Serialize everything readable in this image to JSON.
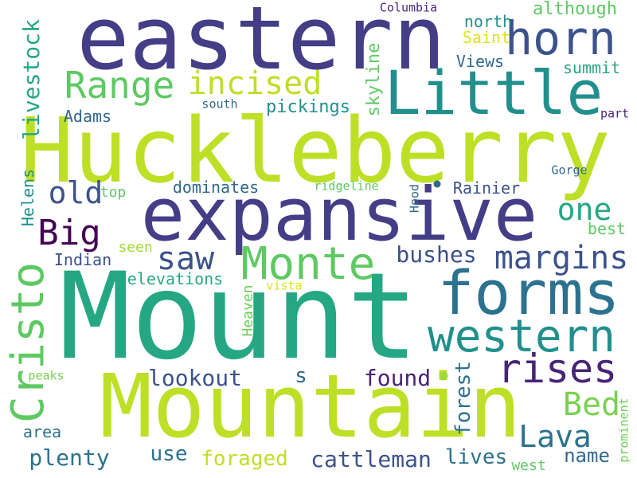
{
  "words": [
    {
      "text": "Mount",
      "color": "#26a784"
    },
    {
      "text": "Huckleberry",
      "color": "#bddf26"
    },
    {
      "text": "Mountain",
      "color": "#bddf26"
    },
    {
      "text": "eastern",
      "color": "#433e85"
    },
    {
      "text": "expansive",
      "color": "#433e85"
    },
    {
      "text": "Little",
      "color": "#21908d"
    },
    {
      "text": "horn",
      "color": "#3b528b"
    },
    {
      "text": "forms",
      "color": "#2c728e"
    },
    {
      "text": "western",
      "color": "#21908d"
    },
    {
      "text": "Monte",
      "color": "#5ec962"
    },
    {
      "text": "Cristo",
      "color": "#5ec962"
    },
    {
      "text": "rises",
      "color": "#482475"
    },
    {
      "text": "margins",
      "color": "#3b528b"
    },
    {
      "text": "Range",
      "color": "#5ec962"
    },
    {
      "text": "incised",
      "color": "#bddf26"
    },
    {
      "text": "Big",
      "color": "#440154"
    },
    {
      "text": "saw",
      "color": "#3b528b"
    },
    {
      "text": "old",
      "color": "#3b528b"
    },
    {
      "text": "one",
      "color": "#26a784"
    },
    {
      "text": "Bed",
      "color": "#7ad151"
    },
    {
      "text": "Lava",
      "color": "#2c728e"
    },
    {
      "text": "bushes",
      "color": "#3b528b"
    },
    {
      "text": "lookout",
      "color": "#3b528b"
    },
    {
      "text": "found",
      "color": "#482475"
    },
    {
      "text": "plenty",
      "color": "#2c728e"
    },
    {
      "text": "cattleman",
      "color": "#3b528b"
    },
    {
      "text": "foraged",
      "color": "#bddf26"
    },
    {
      "text": "lives",
      "color": "#2c728e"
    },
    {
      "text": "name",
      "color": "#31688e"
    },
    {
      "text": "use",
      "color": "#2c728e"
    },
    {
      "text": "livestock",
      "color": "#26a784"
    },
    {
      "text": "pickings",
      "color": "#21908d"
    },
    {
      "text": "skyline",
      "color": "#5ec962"
    },
    {
      "text": "although",
      "color": "#5ec962"
    },
    {
      "text": "Saint",
      "color": "#dde318"
    },
    {
      "text": "north",
      "color": "#21908d"
    },
    {
      "text": "Views",
      "color": "#31688e"
    },
    {
      "text": "summit",
      "color": "#26a784"
    },
    {
      "text": "Columbia",
      "color": "#482878"
    },
    {
      "text": "south",
      "color": "#31688e"
    },
    {
      "text": "part",
      "color": "#482475"
    },
    {
      "text": "Adams",
      "color": "#31688e"
    },
    {
      "text": "Gorge",
      "color": "#31688e"
    },
    {
      "text": "dominates",
      "color": "#31688e"
    },
    {
      "text": "ridgeline",
      "color": "#5ec962"
    },
    {
      "text": "Rainier",
      "color": "#3b528b"
    },
    {
      "text": "top",
      "color": "#5ec962"
    },
    {
      "text": "Hood",
      "color": "#31688e"
    },
    {
      "text": "Helens",
      "color": "#21908d"
    },
    {
      "text": "best",
      "color": "#5ec962"
    },
    {
      "text": "Indian",
      "color": "#3b528b"
    },
    {
      "text": "seen",
      "color": "#a0da39"
    },
    {
      "text": "elevations",
      "color": "#26a784"
    },
    {
      "text": "Heaven",
      "color": "#6ece58"
    },
    {
      "text": "vista",
      "color": "#dde318"
    },
    {
      "text": "s",
      "color": "#31688e"
    },
    {
      "text": "forest",
      "color": "#2c728e"
    },
    {
      "text": "peaks",
      "color": "#7ad151"
    },
    {
      "text": "area",
      "color": "#2c728e"
    },
    {
      "text": "west",
      "color": "#5ec962"
    },
    {
      "text": "prominent",
      "color": "#6ece58"
    },
    {
      "text": "dot1",
      "color": "#31688e"
    },
    {
      "text": "dot2",
      "color": "#a0da39"
    }
  ]
}
